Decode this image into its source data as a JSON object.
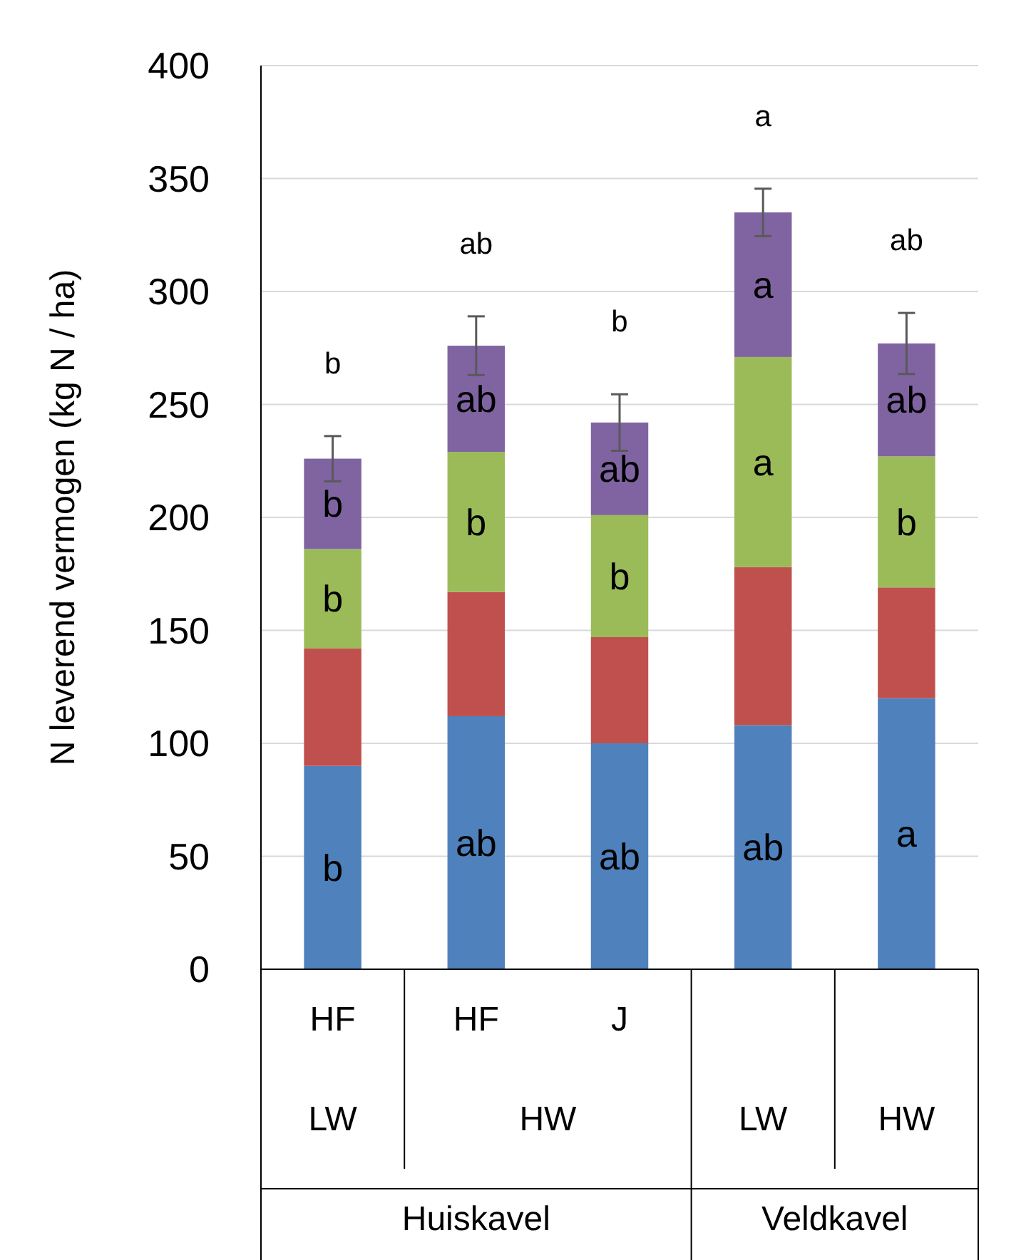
{
  "chart_data": {
    "type": "bar",
    "stacked": true,
    "ylabel": "N leverend vermogen (kg N / ha)",
    "categories": [
      "HF",
      "HF",
      "J",
      null,
      null
    ],
    "annotations": [
      "LW",
      "HW",
      "LW",
      "HW",
      "Huiskavel",
      "Veldkavel"
    ],
    "series": [
      {
        "color": "#4f81bd",
        "values": [
          90,
          112,
          100,
          108,
          120
        ],
        "value_labels": [
          "b",
          "ab",
          "ab",
          "ab",
          "a"
        ]
      },
      {
        "color": "#c0504d",
        "values": [
          52,
          55,
          47,
          70,
          49
        ]
      },
      {
        "color": "#9bbb59",
        "values": [
          44,
          62,
          54,
          93,
          58
        ],
        "value_labels": [
          "b",
          "b",
          "b",
          "a",
          "b"
        ]
      },
      {
        "color": "#8064a2",
        "values": [
          40,
          47,
          41,
          64,
          50
        ],
        "value_labels": [
          "b",
          "ab",
          "ab",
          "a",
          "ab"
        ],
        "errors": [
          10,
          13,
          12.5,
          10.5,
          13.5
        ]
      }
    ],
    "totals": [
      "b",
      "ab",
      "b",
      "a",
      "ab"
    ],
    "ylim": [
      0,
      400
    ],
    "yticks": [
      0,
      50,
      100,
      150,
      200,
      250,
      300,
      350,
      400
    ],
    "grid": "y"
  }
}
